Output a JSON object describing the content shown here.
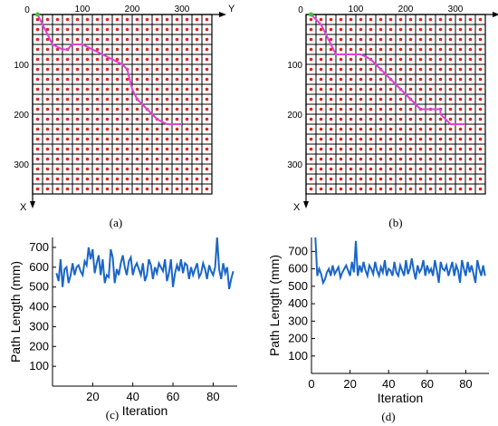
{
  "panel_labels": {
    "a": "(a)",
    "b": "(b)",
    "c": "(c)",
    "d": "(d)"
  },
  "colors": {
    "grid_fill": "#ffffff",
    "grid_line": "#000000",
    "node_dot": "#e0201c",
    "path": "#e040d8",
    "start_marker": "#3cc03c",
    "series": "#1a66c8"
  },
  "chart_data": [
    {
      "type": "scatter",
      "panel": "(a)",
      "description_type": "grid map with planned path",
      "grid_cells": 18,
      "axis_x_letter": "X",
      "axis_y_letter": "Y",
      "y_ticks": [
        "0",
        "100",
        "200",
        "300"
      ],
      "x_ticks": [
        "0",
        "100",
        "200",
        "300"
      ],
      "range": [
        0,
        360
      ],
      "path_points": [
        [
          0,
          10
        ],
        [
          20,
          20
        ],
        [
          40,
          30
        ],
        [
          60,
          40
        ],
        [
          70,
          60
        ],
        [
          70,
          70
        ],
        [
          60,
          80
        ],
        [
          60,
          100
        ],
        [
          70,
          120
        ],
        [
          80,
          140
        ],
        [
          90,
          160
        ],
        [
          100,
          180
        ],
        [
          110,
          190
        ],
        [
          130,
          195
        ],
        [
          150,
          200
        ],
        [
          170,
          210
        ],
        [
          190,
          230
        ],
        [
          210,
          250
        ],
        [
          220,
          270
        ],
        [
          220,
          300
        ]
      ]
    },
    {
      "type": "scatter",
      "panel": "(b)",
      "description_type": "grid map with planned path",
      "grid_cells": 18,
      "axis_x_letter": "X",
      "axis_y_letter": "Y",
      "y_ticks": [
        "0",
        "100",
        "200",
        "300"
      ],
      "x_ticks": [
        "0",
        "100",
        "200",
        "300"
      ],
      "range": [
        0,
        360
      ],
      "path_points": [
        [
          0,
          10
        ],
        [
          10,
          20
        ],
        [
          20,
          30
        ],
        [
          40,
          40
        ],
        [
          60,
          50
        ],
        [
          80,
          60
        ],
        [
          80,
          80
        ],
        [
          80,
          110
        ],
        [
          90,
          130
        ],
        [
          110,
          150
        ],
        [
          130,
          170
        ],
        [
          150,
          190
        ],
        [
          170,
          210
        ],
        [
          190,
          230
        ],
        [
          190,
          270
        ],
        [
          200,
          270
        ],
        [
          220,
          290
        ],
        [
          220,
          320
        ]
      ]
    },
    {
      "type": "line",
      "panel": "(c)",
      "xlabel": "Iteration",
      "ylabel": "Path Length (mm)",
      "xlim": [
        0,
        92
      ],
      "ylim": [
        0,
        750
      ],
      "xticks": [
        20,
        40,
        60,
        80
      ],
      "yticks": [
        100,
        200,
        300,
        400,
        500,
        600,
        700
      ],
      "x": [
        2,
        3,
        4,
        5,
        6,
        7,
        8,
        9,
        10,
        11,
        12,
        13,
        14,
        15,
        16,
        17,
        18,
        19,
        20,
        21,
        22,
        23,
        24,
        25,
        26,
        27,
        28,
        29,
        30,
        31,
        32,
        33,
        34,
        35,
        36,
        37,
        38,
        39,
        40,
        41,
        42,
        43,
        44,
        45,
        46,
        47,
        48,
        49,
        50,
        51,
        52,
        53,
        54,
        55,
        56,
        57,
        58,
        59,
        60,
        61,
        62,
        63,
        64,
        65,
        66,
        67,
        68,
        69,
        70,
        71,
        72,
        73,
        74,
        75,
        76,
        77,
        78,
        79,
        80,
        81,
        82,
        83,
        84,
        85,
        86,
        87,
        88,
        89,
        90
      ],
      "y": [
        570,
        530,
        640,
        500,
        590,
        600,
        520,
        560,
        620,
        560,
        600,
        610,
        580,
        560,
        630,
        610,
        700,
        640,
        690,
        570,
        620,
        660,
        560,
        640,
        520,
        560,
        550,
        690,
        650,
        520,
        590,
        560,
        620,
        660,
        600,
        560,
        630,
        650,
        560,
        600,
        620,
        590,
        560,
        620,
        530,
        560,
        640,
        610,
        540,
        600,
        570,
        620,
        600,
        580,
        640,
        530,
        570,
        640,
        500,
        570,
        610,
        580,
        640,
        570,
        620,
        610,
        540,
        600,
        560,
        590,
        620,
        550,
        570,
        620,
        590,
        540,
        610,
        580,
        560,
        600,
        750,
        590,
        540,
        620,
        570,
        600,
        490,
        540,
        580
      ]
    },
    {
      "type": "line",
      "panel": "(d)",
      "xlabel": "Iteration",
      "ylabel": "Path Length (mm)",
      "xlim": [
        0,
        92
      ],
      "ylim": [
        0,
        780
      ],
      "xticks": [
        0,
        20,
        40,
        60,
        80
      ],
      "yticks": [
        100,
        200,
        300,
        400,
        500,
        600,
        700
      ],
      "x": [
        2,
        3,
        4,
        5,
        6,
        7,
        8,
        9,
        10,
        11,
        12,
        13,
        14,
        15,
        16,
        17,
        18,
        19,
        20,
        21,
        22,
        23,
        24,
        25,
        26,
        27,
        28,
        29,
        30,
        31,
        32,
        33,
        34,
        35,
        36,
        37,
        38,
        39,
        40,
        41,
        42,
        43,
        44,
        45,
        46,
        47,
        48,
        49,
        50,
        51,
        52,
        53,
        54,
        55,
        56,
        57,
        58,
        59,
        60,
        61,
        62,
        63,
        64,
        65,
        66,
        67,
        68,
        69,
        70,
        71,
        72,
        73,
        74,
        75,
        76,
        77,
        78,
        79,
        80,
        81,
        82,
        83,
        84,
        85,
        86,
        87,
        88,
        89,
        90
      ],
      "y": [
        780,
        560,
        600,
        570,
        520,
        540,
        580,
        600,
        560,
        620,
        570,
        590,
        610,
        550,
        580,
        600,
        620,
        590,
        560,
        640,
        580,
        760,
        560,
        620,
        580,
        640,
        590,
        560,
        620,
        600,
        570,
        640,
        590,
        560,
        610,
        580,
        650,
        560,
        600,
        590,
        560,
        640,
        580,
        560,
        620,
        590,
        560,
        650,
        570,
        600,
        660,
        590,
        540,
        620,
        580,
        600,
        650,
        560,
        620,
        580,
        600,
        560,
        650,
        590,
        520,
        640,
        600,
        590,
        620,
        560,
        600,
        640,
        560,
        620,
        590,
        520,
        650,
        600,
        560,
        640,
        580,
        620,
        570,
        520,
        650,
        600,
        560,
        620,
        560
      ]
    }
  ]
}
